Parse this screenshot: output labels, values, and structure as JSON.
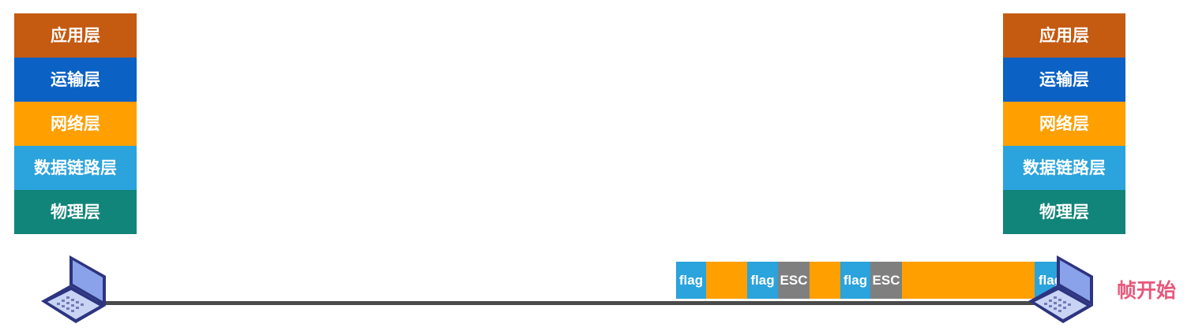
{
  "layers": [
    {
      "label": "应用层",
      "color": "#c55a11"
    },
    {
      "label": "运输层",
      "color": "#0b61c4"
    },
    {
      "label": "网络层",
      "color": "#ff9f00"
    },
    {
      "label": "数据链路层",
      "color": "#2ba3dc"
    },
    {
      "label": "物理层",
      "color": "#12857a"
    }
  ],
  "frame": {
    "segments": [
      {
        "label": "flag",
        "kind": "flag"
      },
      {
        "label": "",
        "kind": "data"
      },
      {
        "label": "flag",
        "kind": "flag"
      },
      {
        "label": "ESC",
        "kind": "esc"
      },
      {
        "label": "",
        "kind": "data"
      },
      {
        "label": "flag",
        "kind": "flag"
      },
      {
        "label": "ESC",
        "kind": "esc"
      },
      {
        "label": "",
        "kind": "data"
      },
      {
        "label": "flag",
        "kind": "flag"
      }
    ],
    "colors": {
      "flag": "#2ba3dc",
      "data": "#ff9f00",
      "esc": "#7f7f7f"
    }
  },
  "annotation": "帧开始",
  "link_color": "#4a4a4a",
  "icons": {
    "host": "laptop-icon"
  }
}
